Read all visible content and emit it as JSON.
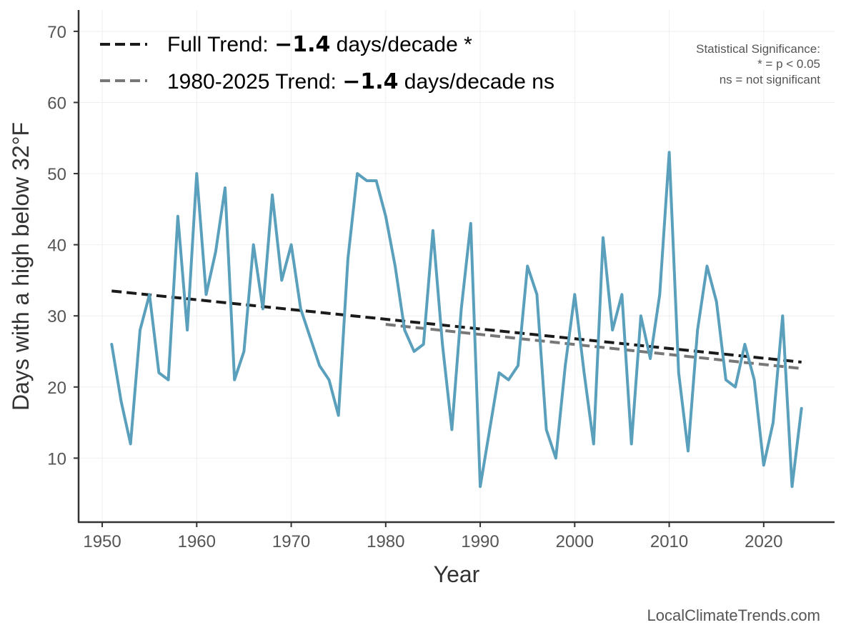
{
  "chart_data": {
    "type": "line",
    "xlabel": "Year",
    "ylabel": "Days with a high below 32°F",
    "xlim": [
      1947.5,
      2027.5
    ],
    "ylim": [
      1,
      73
    ],
    "x_ticks": [
      1950,
      1960,
      1970,
      1980,
      1990,
      2000,
      2010,
      2020
    ],
    "y_ticks": [
      10,
      20,
      30,
      40,
      50,
      60,
      70
    ],
    "grid": true,
    "legend_position": "top-left",
    "colors": {
      "series": "#5aa0bc",
      "full_trend": "#1a1a1a",
      "recent_trend": "#777777",
      "grid": "#efefef",
      "axis": "#333333"
    },
    "series": [
      {
        "x": [
          1951,
          1952,
          1953,
          1954,
          1955,
          1956,
          1957,
          1958,
          1959,
          1960,
          1961,
          1962,
          1963,
          1964,
          1965,
          1966,
          1967,
          1968,
          1969,
          1970,
          1971,
          1972,
          1973,
          1974,
          1975,
          1976,
          1977,
          1978,
          1979,
          1980,
          1981,
          1982,
          1983,
          1984,
          1985,
          1986,
          1987,
          1988,
          1989,
          1990,
          1991,
          1992,
          1993,
          1994,
          1995,
          1996,
          1997,
          1998,
          1999,
          2000,
          2001,
          2002,
          2003,
          2004,
          2005,
          2006,
          2007,
          2008,
          2009,
          2010,
          2011,
          2012,
          2013,
          2014,
          2015,
          2016,
          2017,
          2018,
          2019,
          2020,
          2021,
          2022,
          2023,
          2024
        ],
        "values": [
          26,
          18,
          12,
          28,
          33,
          22,
          21,
          44,
          28,
          50,
          33,
          39,
          48,
          21,
          25,
          40,
          31,
          47,
          35,
          40,
          31,
          27,
          23,
          21,
          16,
          38,
          50,
          49,
          49,
          44,
          37,
          28,
          25,
          26,
          42,
          26,
          14,
          31,
          43,
          6,
          14,
          22,
          21,
          23,
          37,
          33,
          14,
          10,
          23,
          33,
          22,
          12,
          41,
          28,
          33,
          12,
          30,
          24,
          33,
          53,
          22,
          11,
          28,
          37,
          32,
          21,
          20,
          26,
          21,
          9,
          15,
          30,
          6,
          17
        ]
      }
    ],
    "trend_lines": [
      {
        "id": "full",
        "x": [
          1951,
          2024
        ],
        "y": [
          33.5,
          23.5
        ]
      },
      {
        "id": "recent",
        "x": [
          1980,
          2024
        ],
        "y": [
          28.8,
          22.6
        ]
      }
    ],
    "legend": [
      {
        "prefix": "Full Trend: ",
        "value": "−1.4",
        "suffix": " days/decade *"
      },
      {
        "prefix": "1980-2025 Trend: ",
        "value": "−1.4",
        "suffix": " days/decade ns"
      }
    ],
    "significance_note": [
      "Statistical Significance:",
      "* = p < 0.05",
      "ns = not significant"
    ],
    "source": "LocalClimateTrends.com"
  }
}
